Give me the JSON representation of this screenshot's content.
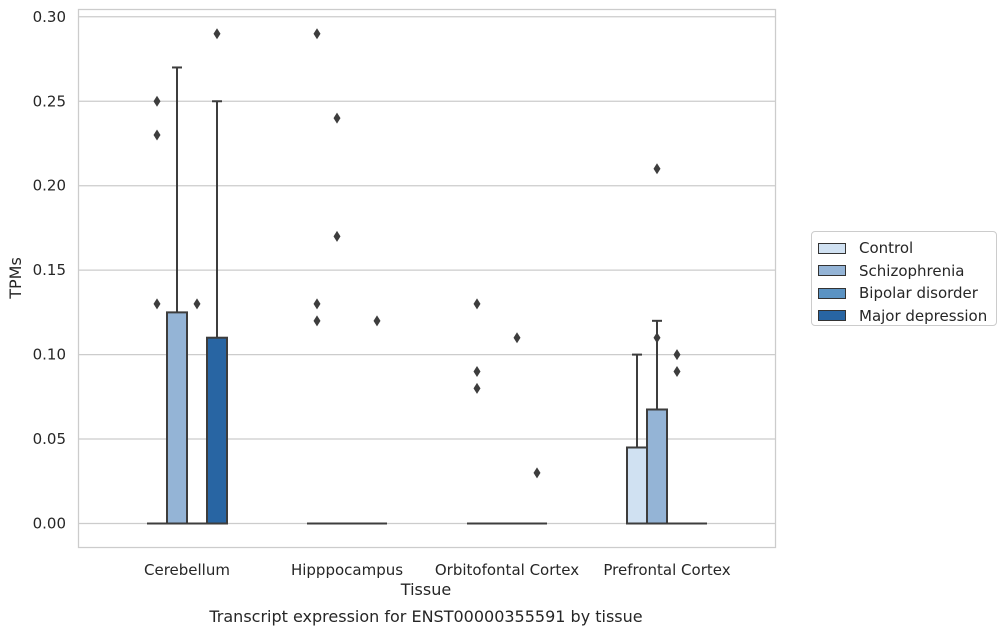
{
  "chart_data": {
    "type": "box",
    "title": "Transcript expression for ENST00000355591 by tissue",
    "xlabel": "Tissue",
    "ylabel": "TPMs",
    "ylim": [
      -0.014,
      0.305
    ],
    "yticks": [
      0.0,
      0.05,
      0.1,
      0.15,
      0.2,
      0.25,
      0.3
    ],
    "ytick_labels": [
      "0.00",
      "0.05",
      "0.10",
      "0.15",
      "0.20",
      "0.25",
      "0.30"
    ],
    "grid": "horizontal",
    "legend_position": "right",
    "categories": [
      "Cerebellum",
      "Hipppocampus",
      "Orbitofontal Cortex",
      "Prefrontal Cortex"
    ],
    "series": [
      {
        "name": "Control",
        "color": "#d0e1f2",
        "boxes": [
          {
            "min": 0,
            "q1": 0,
            "median": 0,
            "q3": 0,
            "max": 0,
            "outliers": [
              0.13,
              0.23,
              0.25
            ]
          },
          {
            "min": 0,
            "q1": 0,
            "median": 0,
            "q3": 0,
            "max": 0,
            "outliers": [
              0.12,
              0.13,
              0.29
            ]
          },
          {
            "min": 0,
            "q1": 0,
            "median": 0,
            "q3": 0,
            "max": 0,
            "outliers": [
              0.08,
              0.09,
              0.13
            ]
          },
          {
            "min": 0,
            "q1": 0,
            "median": 0,
            "q3": 0.045,
            "max": 0.1,
            "outliers": []
          }
        ]
      },
      {
        "name": "Schizophrenia",
        "color": "#94b4d6",
        "boxes": [
          {
            "min": 0,
            "q1": 0,
            "median": 0,
            "q3": 0.125,
            "max": 0.27,
            "outliers": []
          },
          {
            "min": 0,
            "q1": 0,
            "median": 0,
            "q3": 0,
            "max": 0,
            "outliers": [
              0.17,
              0.24
            ]
          },
          {
            "min": 0,
            "q1": 0,
            "median": 0,
            "q3": 0,
            "max": 0,
            "outliers": []
          },
          {
            "min": 0,
            "q1": 0,
            "median": 0,
            "q3": 0.0675,
            "max": 0.12,
            "outliers": [
              0.11,
              0.21
            ]
          }
        ]
      },
      {
        "name": "Bipolar disorder",
        "color": "#5b93c3",
        "boxes": [
          {
            "min": 0,
            "q1": 0,
            "median": 0,
            "q3": 0,
            "max": 0,
            "outliers": [
              0.13
            ]
          },
          {
            "min": 0,
            "q1": 0,
            "median": 0,
            "q3": 0,
            "max": 0,
            "outliers": []
          },
          {
            "min": 0,
            "q1": 0,
            "median": 0,
            "q3": 0,
            "max": 0,
            "outliers": [
              0.11
            ]
          },
          {
            "min": 0,
            "q1": 0,
            "median": 0,
            "q3": 0,
            "max": 0,
            "outliers": [
              0.09,
              0.1
            ]
          }
        ]
      },
      {
        "name": "Major depression",
        "color": "#2865a3",
        "boxes": [
          {
            "min": 0,
            "q1": 0,
            "median": 0,
            "q3": 0.11,
            "max": 0.25,
            "outliers": [
              0.29
            ]
          },
          {
            "min": 0,
            "q1": 0,
            "median": 0,
            "q3": 0,
            "max": 0,
            "outliers": [
              0.12
            ]
          },
          {
            "min": 0,
            "q1": 0,
            "median": 0,
            "q3": 0,
            "max": 0,
            "outliers": [
              0.03
            ]
          },
          {
            "min": 0,
            "q1": 0,
            "median": 0,
            "q3": 0,
            "max": 0,
            "outliers": []
          }
        ]
      }
    ]
  }
}
